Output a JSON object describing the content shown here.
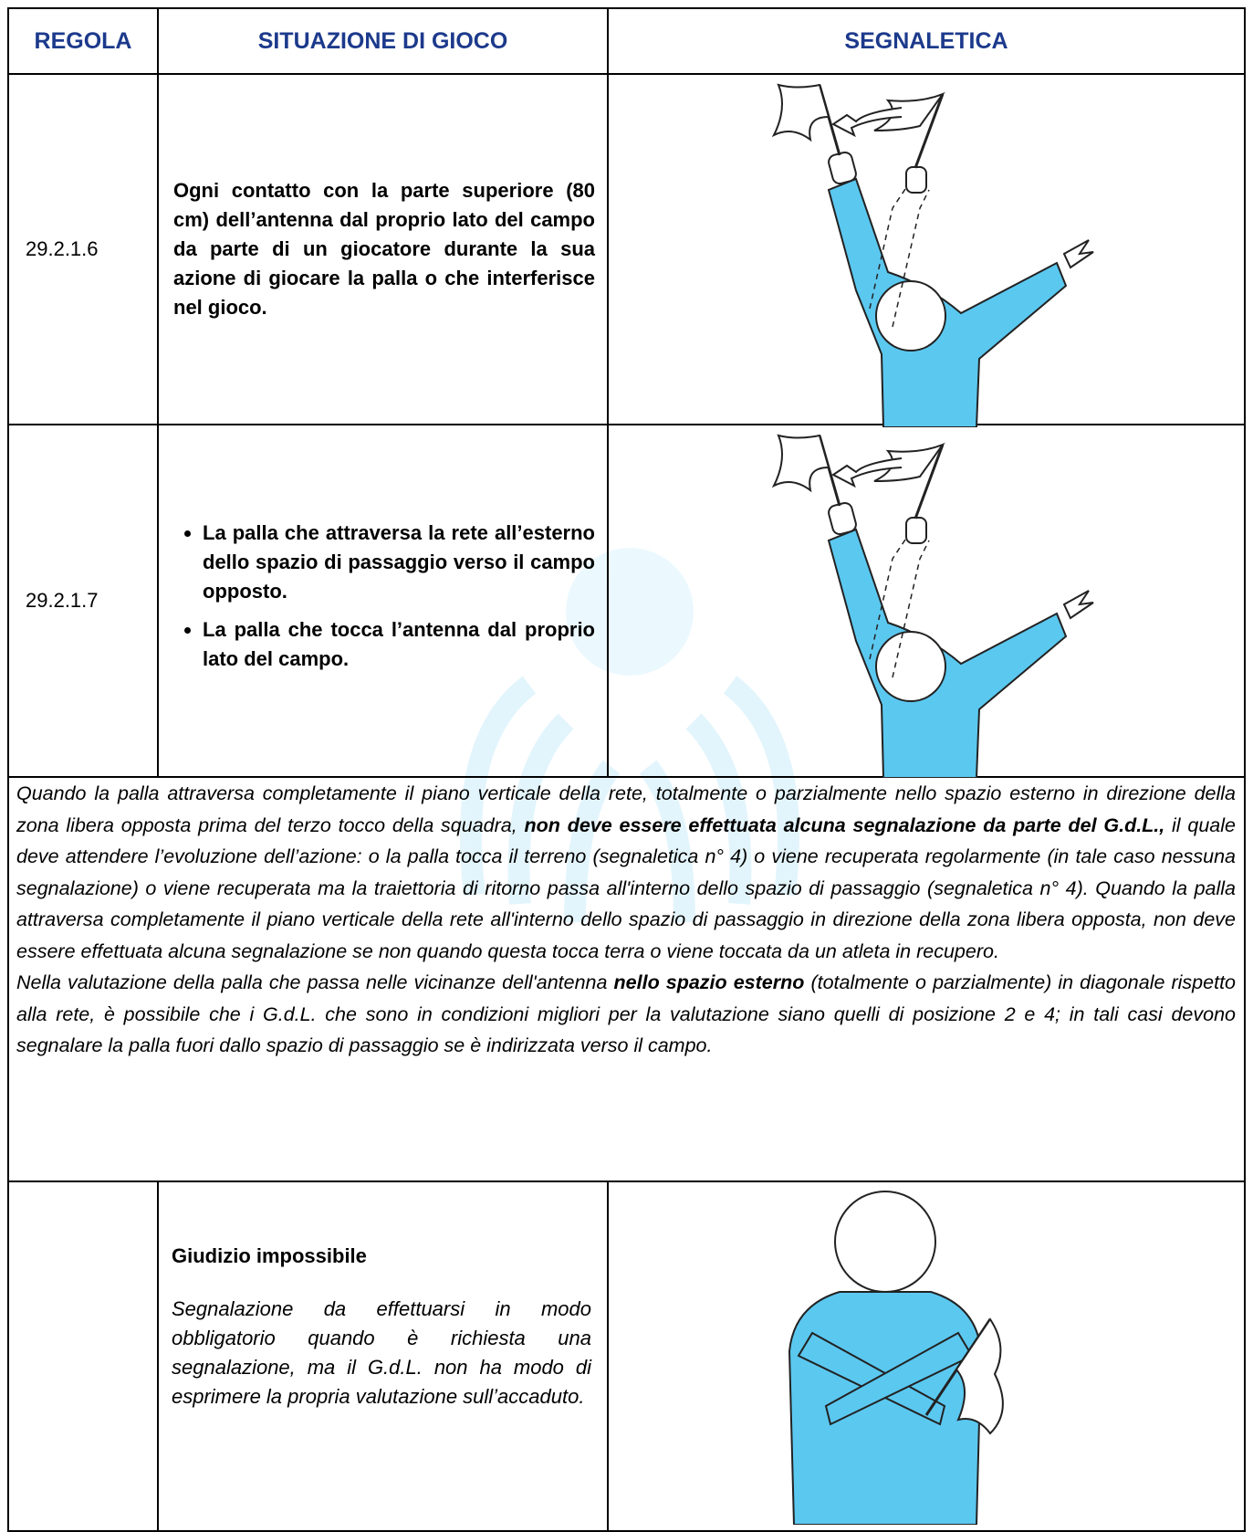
{
  "table": {
    "headers": [
      "REGOLA",
      "SITUAZIONE DI GIOCO",
      "SEGNALETICA"
    ],
    "rows": [
      {
        "rule": "29.2.1.6",
        "situation": "Ogni contatto con la parte superiore (80 cm) dell’antenna dal proprio lato del campo da parte di un giocatore durante la sua azione di giocare la palla o che interferisce nel gioco."
      },
      {
        "rule": "29.2.1.7",
        "bullets": [
          "La palla che attraversa la rete all’esterno dello spazio di passaggio verso il campo opposto.",
          "La palla che tocca l’antenna dal proprio lato del campo."
        ]
      }
    ],
    "note": [
      [
        "Quando la palla attraversa completamente il piano verticale della rete, totalmente o parzialmente nello spazio esterno in direzione della zona libera opposta prima del terzo tocco della squadra, ",
        "non deve essere effettuata alcuna segnalazione da parte del G.d.L.,",
        " il quale deve attendere l’evoluzione dell’azione: o la palla tocca il terreno (segnaletica n° 4) o viene recuperata regolarmente (in tale caso nessuna segnalazione) o viene recuperata ma la traiettoria di ritorno passa all'interno dello spazio di passaggio (segnaletica n° 4). Quando la palla attraversa completamente il piano verticale della rete all'interno dello spazio di passaggio in direzione della zona libera opposta, non deve essere effettuata alcuna segnalazione se non quando questa tocca terra o viene toccata da un atleta in recupero."
      ],
      [
        "Nella valutazione della palla che passa nelle vicinanze dell'antenna ",
        "nello spazio esterno",
        " (totalmente o parzialmente) in diagonale rispetto alla rete, è possibile che i G.d.L. che sono in condizioni migliori per la valutazione siano quelli di posizione 2 e 4; in tali casi devono segnalare la palla fuori dallo spazio di passaggio se è indirizzata verso il campo."
      ]
    ],
    "last_row": {
      "title": "Giudizio impossibile",
      "text": "Segnalazione da effettuarsi in modo obbligatorio quando è richiesta una segnalazione, ma il G.d.L. non ha modo di esprimere la propria valutazione sull’accaduto."
    }
  }
}
